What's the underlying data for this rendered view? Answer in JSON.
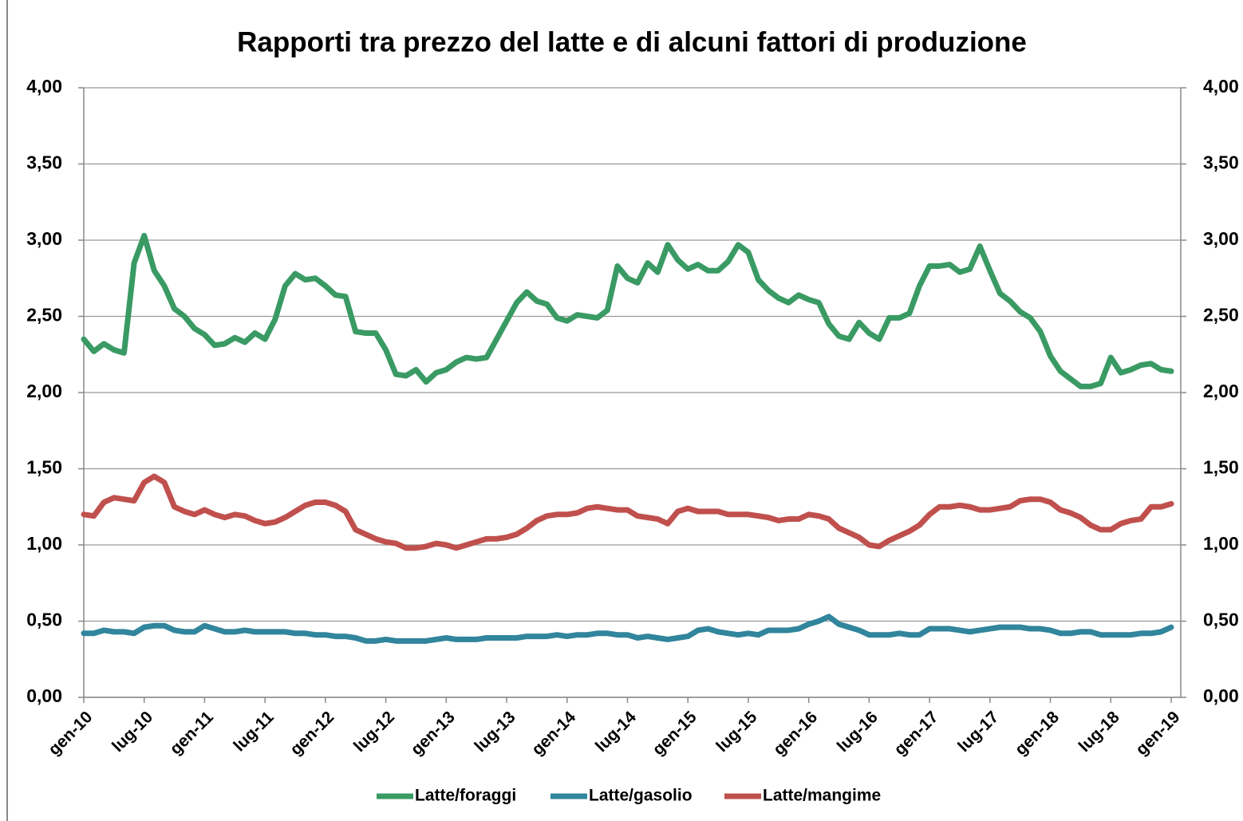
{
  "chart_data": {
    "type": "line",
    "title": "Rapporti tra prezzo del latte e di alcuni fattori di produzione",
    "categories": [
      "gen-10",
      null,
      null,
      null,
      null,
      null,
      "lug-10",
      null,
      null,
      null,
      null,
      null,
      "gen-11",
      null,
      null,
      null,
      null,
      null,
      "lug-11",
      null,
      null,
      null,
      null,
      null,
      "gen-12",
      null,
      null,
      null,
      null,
      null,
      "lug-12",
      null,
      null,
      null,
      null,
      null,
      "gen-13",
      null,
      null,
      null,
      null,
      null,
      "lug-13",
      null,
      null,
      null,
      null,
      null,
      "gen-14",
      null,
      null,
      null,
      null,
      null,
      "lug-14",
      null,
      null,
      null,
      null,
      null,
      "gen-15",
      null,
      null,
      null,
      null,
      null,
      "lug-15",
      null,
      null,
      null,
      null,
      null,
      "gen-16",
      null,
      null,
      null,
      null,
      null,
      "lug-16",
      null,
      null,
      null,
      null,
      null,
      "gen-17",
      null,
      null,
      null,
      null,
      null,
      "lug-17",
      null,
      null,
      null,
      null,
      null,
      "gen-18",
      null,
      null,
      null,
      null,
      null,
      "lug-18",
      null,
      null,
      null,
      null,
      null,
      "gen-19"
    ],
    "series": [
      {
        "name": "Latte/foraggi",
        "color": "#3a9a64",
        "values": [
          2.35,
          2.27,
          2.32,
          2.28,
          2.26,
          2.85,
          3.03,
          2.8,
          2.7,
          2.55,
          2.5,
          2.42,
          2.38,
          2.31,
          2.32,
          2.36,
          2.33,
          2.39,
          2.35,
          2.48,
          2.7,
          2.78,
          2.74,
          2.75,
          2.7,
          2.64,
          2.63,
          2.4,
          2.39,
          2.39,
          2.28,
          2.12,
          2.11,
          2.15,
          2.07,
          2.13,
          2.15,
          2.2,
          2.23,
          2.22,
          2.23,
          2.35,
          2.47,
          2.59,
          2.66,
          2.6,
          2.58,
          2.49,
          2.47,
          2.51,
          2.5,
          2.49,
          2.54,
          2.83,
          2.75,
          2.72,
          2.85,
          2.79,
          2.97,
          2.87,
          2.81,
          2.84,
          2.8,
          2.8,
          2.86,
          2.97,
          2.92,
          2.74,
          2.67,
          2.62,
          2.59,
          2.64,
          2.61,
          2.59,
          2.45,
          2.37,
          2.35,
          2.46,
          2.39,
          2.35,
          2.49,
          2.49,
          2.52,
          2.7,
          2.83,
          2.83,
          2.84,
          2.79,
          2.81,
          2.96,
          2.8,
          2.65,
          2.6,
          2.53,
          2.49,
          2.4,
          2.24,
          2.14,
          2.09,
          2.04,
          2.04,
          2.06,
          2.23,
          2.13,
          2.15,
          2.18,
          2.19,
          2.15,
          2.14
        ]
      },
      {
        "name": "Latte/gasolio",
        "color": "#31859c",
        "values": [
          0.42,
          0.42,
          0.44,
          0.43,
          0.43,
          0.42,
          0.46,
          0.47,
          0.47,
          0.44,
          0.43,
          0.43,
          0.47,
          0.45,
          0.43,
          0.43,
          0.44,
          0.43,
          0.43,
          0.43,
          0.43,
          0.42,
          0.42,
          0.41,
          0.41,
          0.4,
          0.4,
          0.39,
          0.37,
          0.37,
          0.38,
          0.37,
          0.37,
          0.37,
          0.37,
          0.38,
          0.39,
          0.38,
          0.38,
          0.38,
          0.39,
          0.39,
          0.39,
          0.39,
          0.4,
          0.4,
          0.4,
          0.41,
          0.4,
          0.41,
          0.41,
          0.42,
          0.42,
          0.41,
          0.41,
          0.39,
          0.4,
          0.39,
          0.38,
          0.39,
          0.4,
          0.44,
          0.45,
          0.43,
          0.42,
          0.41,
          0.42,
          0.41,
          0.44,
          0.44,
          0.44,
          0.45,
          0.48,
          0.5,
          0.53,
          0.48,
          0.46,
          0.44,
          0.41,
          0.41,
          0.41,
          0.42,
          0.41,
          0.41,
          0.45,
          0.45,
          0.45,
          0.44,
          0.43,
          0.44,
          0.45,
          0.46,
          0.46,
          0.46,
          0.45,
          0.45,
          0.44,
          0.42,
          0.42,
          0.43,
          0.43,
          0.41,
          0.41,
          0.41,
          0.41,
          0.42,
          0.42,
          0.43,
          0.46
        ]
      },
      {
        "name": "Latte/mangime",
        "color": "#c0504d",
        "values": [
          1.2,
          1.19,
          1.28,
          1.31,
          1.3,
          1.29,
          1.41,
          1.45,
          1.41,
          1.25,
          1.22,
          1.2,
          1.23,
          1.2,
          1.18,
          1.2,
          1.19,
          1.16,
          1.14,
          1.15,
          1.18,
          1.22,
          1.26,
          1.28,
          1.28,
          1.26,
          1.22,
          1.1,
          1.07,
          1.04,
          1.02,
          1.01,
          0.98,
          0.98,
          0.99,
          1.01,
          1.0,
          0.98,
          1.0,
          1.02,
          1.04,
          1.04,
          1.05,
          1.07,
          1.11,
          1.16,
          1.19,
          1.2,
          1.2,
          1.21,
          1.24,
          1.25,
          1.24,
          1.23,
          1.23,
          1.19,
          1.18,
          1.17,
          1.14,
          1.22,
          1.24,
          1.22,
          1.22,
          1.22,
          1.2,
          1.2,
          1.2,
          1.19,
          1.18,
          1.16,
          1.17,
          1.17,
          1.2,
          1.19,
          1.17,
          1.11,
          1.08,
          1.05,
          1.0,
          0.99,
          1.03,
          1.06,
          1.09,
          1.13,
          1.2,
          1.25,
          1.25,
          1.26,
          1.25,
          1.23,
          1.23,
          1.24,
          1.25,
          1.29,
          1.3,
          1.3,
          1.28,
          1.23,
          1.21,
          1.18,
          1.13,
          1.1,
          1.1,
          1.14,
          1.16,
          1.17,
          1.25,
          1.25,
          1.27
        ]
      }
    ],
    "ylim": [
      0,
      4
    ],
    "yticks": [
      {
        "value": 0,
        "label": "0,00"
      },
      {
        "value": 0.5,
        "label": "0,50"
      },
      {
        "value": 1,
        "label": "1,00"
      },
      {
        "value": 1.5,
        "label": "1,50"
      },
      {
        "value": 2,
        "label": "2,00"
      },
      {
        "value": 2.5,
        "label": "2,50"
      },
      {
        "value": 3,
        "label": "3,00"
      },
      {
        "value": 3.5,
        "label": "3,50"
      },
      {
        "value": 4,
        "label": "4,00"
      }
    ],
    "y2lim": [
      0,
      4
    ],
    "y2ticks": [
      {
        "value": 0,
        "label": "0,00"
      },
      {
        "value": 0.5,
        "label": "0,50"
      },
      {
        "value": 1,
        "label": "1,00"
      },
      {
        "value": 1.5,
        "label": "1,50"
      },
      {
        "value": 2,
        "label": "2,00"
      },
      {
        "value": 2.5,
        "label": "2,50"
      },
      {
        "value": 3,
        "label": "3,00"
      },
      {
        "value": 3.5,
        "label": "3,50"
      },
      {
        "value": 4,
        "label": "4,00"
      }
    ],
    "grid": true,
    "legend": "bottom"
  }
}
